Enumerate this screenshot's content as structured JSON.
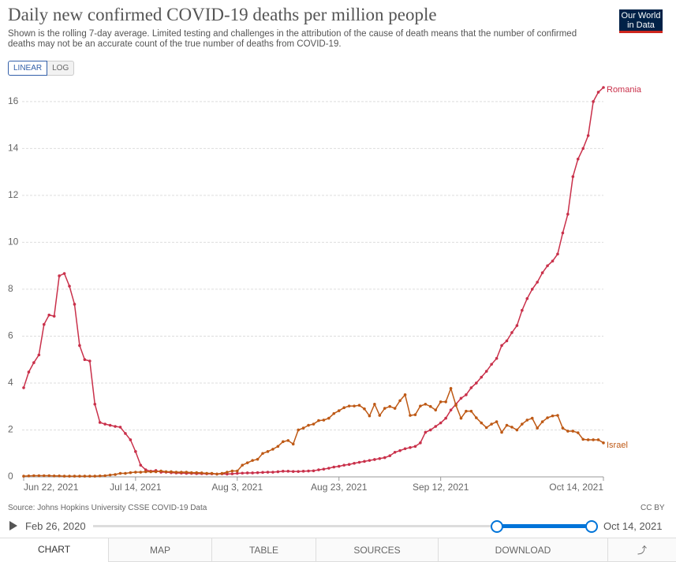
{
  "header": {
    "logo": "Our World in Data"
  },
  "chart_data": {
    "type": "line",
    "title": "Daily new confirmed COVID-19 deaths per million people",
    "subtitle": "Shown is the rolling 7-day average. Limited testing and challenges in the attribution of the cause of death means that the number of confirmed deaths may not be an accurate count of the true number of deaths from COVID-19.",
    "x": [
      "2021-06-22",
      "2021-06-23",
      "2021-06-24",
      "2021-06-25",
      "2021-06-26",
      "2021-06-27",
      "2021-06-28",
      "2021-06-29",
      "2021-06-30",
      "2021-07-01",
      "2021-07-02",
      "2021-07-03",
      "2021-07-04",
      "2021-07-05",
      "2021-07-06",
      "2021-07-07",
      "2021-07-08",
      "2021-07-09",
      "2021-07-10",
      "2021-07-11",
      "2021-07-12",
      "2021-07-13",
      "2021-07-14",
      "2021-07-15",
      "2021-07-16",
      "2021-07-17",
      "2021-07-18",
      "2021-07-19",
      "2021-07-20",
      "2021-07-21",
      "2021-07-22",
      "2021-07-23",
      "2021-07-24",
      "2021-07-25",
      "2021-07-26",
      "2021-07-27",
      "2021-07-28",
      "2021-07-29",
      "2021-07-30",
      "2021-07-31",
      "2021-08-01",
      "2021-08-02",
      "2021-08-03",
      "2021-08-04",
      "2021-08-05",
      "2021-08-06",
      "2021-08-07",
      "2021-08-08",
      "2021-08-09",
      "2021-08-10",
      "2021-08-11",
      "2021-08-12",
      "2021-08-13",
      "2021-08-14",
      "2021-08-15",
      "2021-08-16",
      "2021-08-17",
      "2021-08-18",
      "2021-08-19",
      "2021-08-20",
      "2021-08-21",
      "2021-08-22",
      "2021-08-23",
      "2021-08-24",
      "2021-08-25",
      "2021-08-26",
      "2021-08-27",
      "2021-08-28",
      "2021-08-29",
      "2021-08-30",
      "2021-08-31",
      "2021-09-01",
      "2021-09-02",
      "2021-09-03",
      "2021-09-04",
      "2021-09-05",
      "2021-09-06",
      "2021-09-07",
      "2021-09-08",
      "2021-09-09",
      "2021-09-10",
      "2021-09-11",
      "2021-09-12",
      "2021-09-13",
      "2021-09-14",
      "2021-09-15",
      "2021-09-16",
      "2021-09-17",
      "2021-09-18",
      "2021-09-19",
      "2021-09-20",
      "2021-09-21",
      "2021-09-22",
      "2021-09-23",
      "2021-09-24",
      "2021-09-25",
      "2021-09-26",
      "2021-09-27",
      "2021-09-28",
      "2021-09-29",
      "2021-09-30",
      "2021-10-01",
      "2021-10-02",
      "2021-10-03",
      "2021-10-04",
      "2021-10-05",
      "2021-10-06",
      "2021-10-07",
      "2021-10-08",
      "2021-10-09",
      "2021-10-10",
      "2021-10-11",
      "2021-10-12",
      "2021-10-13",
      "2021-10-14"
    ],
    "series": [
      {
        "name": "Romania",
        "color": "#c9304a",
        "values": [
          3.8,
          4.47,
          4.87,
          5.2,
          6.5,
          6.9,
          6.85,
          8.57,
          8.67,
          8.13,
          7.36,
          5.6,
          5.0,
          4.94,
          3.1,
          2.32,
          2.25,
          2.2,
          2.15,
          2.12,
          1.85,
          1.58,
          1.08,
          0.5,
          0.3,
          0.24,
          0.27,
          0.2,
          0.2,
          0.18,
          0.17,
          0.16,
          0.15,
          0.15,
          0.14,
          0.14,
          0.13,
          0.13,
          0.12,
          0.13,
          0.12,
          0.13,
          0.15,
          0.16,
          0.17,
          0.17,
          0.18,
          0.19,
          0.2,
          0.2,
          0.22,
          0.24,
          0.24,
          0.23,
          0.23,
          0.24,
          0.25,
          0.26,
          0.3,
          0.33,
          0.37,
          0.42,
          0.45,
          0.5,
          0.53,
          0.58,
          0.62,
          0.66,
          0.7,
          0.74,
          0.78,
          0.82,
          0.9,
          1.05,
          1.12,
          1.2,
          1.25,
          1.3,
          1.45,
          1.9,
          2.0,
          2.15,
          2.3,
          2.5,
          2.85,
          3.1,
          3.35,
          3.5,
          3.8,
          4.0,
          4.25,
          4.5,
          4.8,
          5.05,
          5.6,
          5.8,
          6.15,
          6.45,
          7.1,
          7.6,
          8.0,
          8.3,
          8.7,
          9.0,
          9.2,
          9.5,
          10.4,
          11.2,
          12.8,
          13.55,
          14.0,
          14.55,
          16.0,
          16.4,
          16.6
        ]
      },
      {
        "name": "Israel",
        "color": "#be5915",
        "values": [
          0.03,
          0.04,
          0.05,
          0.05,
          0.05,
          0.05,
          0.04,
          0.04,
          0.03,
          0.03,
          0.03,
          0.03,
          0.03,
          0.03,
          0.03,
          0.04,
          0.05,
          0.08,
          0.1,
          0.15,
          0.15,
          0.18,
          0.2,
          0.2,
          0.22,
          0.22,
          0.22,
          0.25,
          0.22,
          0.22,
          0.2,
          0.2,
          0.2,
          0.18,
          0.18,
          0.17,
          0.15,
          0.15,
          0.12,
          0.15,
          0.2,
          0.25,
          0.25,
          0.5,
          0.6,
          0.7,
          0.75,
          1.0,
          1.08,
          1.18,
          1.3,
          1.5,
          1.55,
          1.4,
          2.0,
          2.08,
          2.2,
          2.25,
          2.4,
          2.42,
          2.5,
          2.7,
          2.82,
          2.95,
          3.02,
          3.02,
          3.05,
          2.9,
          2.6,
          3.1,
          2.62,
          2.92,
          3.0,
          2.92,
          3.25,
          3.5,
          2.62,
          2.65,
          3.02,
          3.1,
          3.0,
          2.85,
          3.2,
          3.2,
          3.77,
          3.05,
          2.5,
          2.8,
          2.8,
          2.52,
          2.3,
          2.1,
          2.25,
          2.35,
          1.9,
          2.2,
          2.12,
          2.0,
          2.25,
          2.42,
          2.5,
          2.08,
          2.35,
          2.52,
          2.6,
          2.62,
          2.08,
          1.95,
          1.95,
          1.88,
          1.6,
          1.58,
          1.58,
          1.58,
          1.45
        ]
      }
    ],
    "xlim": [
      "2021-06-22",
      "2021-10-14"
    ],
    "xticks": [
      {
        "value": "2021-06-22",
        "label": "Jun 22, 2021"
      },
      {
        "value": "2021-07-14",
        "label": "Jul 14, 2021"
      },
      {
        "value": "2021-08-03",
        "label": "Aug 3, 2021"
      },
      {
        "value": "2021-08-23",
        "label": "Aug 23, 2021"
      },
      {
        "value": "2021-09-12",
        "label": "Sep 12, 2021"
      },
      {
        "value": "2021-10-14",
        "label": "Oct 14, 2021"
      }
    ],
    "ylim": [
      0,
      16.6
    ],
    "yticks": [
      0,
      2,
      4,
      6,
      8,
      10,
      12,
      14,
      16
    ],
    "grid": true
  },
  "controls": {
    "scale": [
      "LINEAR",
      "LOG"
    ],
    "timeline_start": "Feb 26, 2020",
    "timeline_end": "Oct 14, 2021"
  },
  "footer": {
    "source": "Source: Johns Hopkins University CSSE COVID-19 Data",
    "license": "CC BY"
  },
  "tabs": [
    "CHART",
    "MAP",
    "TABLE",
    "SOURCES",
    "DOWNLOAD"
  ]
}
